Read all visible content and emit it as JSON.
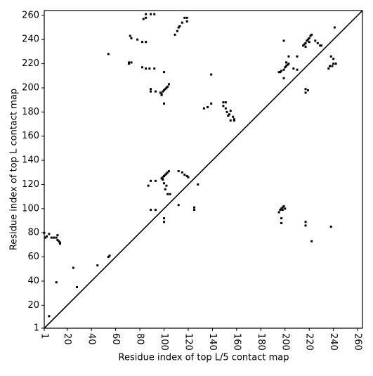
{
  "chart_data": {
    "type": "scatter",
    "x_label": "Residue index of top L/5 contact map",
    "y_label": "Residue index of top L contact map",
    "xlim": [
      1,
      264
    ],
    "ylim": [
      1,
      264
    ],
    "xticks": [
      1,
      20,
      40,
      60,
      80,
      100,
      120,
      140,
      160,
      180,
      200,
      220,
      240,
      260
    ],
    "yticks": [
      1,
      20,
      40,
      60,
      80,
      100,
      120,
      140,
      160,
      180,
      200,
      220,
      240,
      260
    ],
    "series": [
      {
        "color": "#000000",
        "x": [
          83,
          85,
          85,
          89,
          92,
          72,
          73,
          78,
          82,
          85,
          54,
          71,
          71,
          73,
          82,
          85,
          88,
          92,
          89,
          89,
          93,
          97,
          98,
          99,
          100,
          101,
          102,
          103,
          104,
          98,
          100,
          100,
          109,
          111,
          113,
          115,
          117,
          119,
          119,
          112,
          133,
          136,
          139,
          139,
          149,
          149,
          151,
          152,
          154,
          155,
          157,
          158,
          155,
          153,
          151,
          158,
          199,
          195,
          197,
          199,
          200,
          201,
          202,
          203,
          201,
          196,
          199,
          203,
          207,
          210,
          210,
          217,
          217,
          219,
          215,
          216,
          217,
          218,
          219,
          220,
          221,
          222,
          217,
          220,
          225,
          227,
          229,
          230,
          236,
          237,
          239,
          240,
          242,
          238,
          240,
          241
        ],
        "values": [
          257,
          258,
          261,
          261,
          261,
          243,
          241,
          240,
          238,
          238,
          228,
          221,
          220,
          221,
          217,
          216,
          216,
          216,
          199,
          197,
          197,
          196,
          195,
          197,
          198,
          199,
          200,
          201,
          203,
          194,
          187,
          213,
          244,
          247,
          251,
          254,
          258,
          258,
          255,
          250,
          183,
          184,
          187,
          211,
          185,
          188,
          183,
          180,
          178,
          181,
          176,
          174,
          173,
          177,
          188,
          173,
          239,
          213,
          214,
          215,
          217,
          218,
          219,
          220,
          221,
          213,
          208,
          226,
          216,
          215,
          226,
          199,
          196,
          198,
          235,
          236,
          237,
          239,
          240,
          241,
          243,
          244,
          234,
          238,
          239,
          237,
          235,
          235,
          216,
          218,
          218,
          220,
          220,
          226,
          224,
          250
        ]
      },
      {
        "color": "#000000",
        "x": [
          1,
          2,
          3,
          5,
          7,
          9,
          11,
          12,
          13,
          14,
          14,
          12,
          11,
          5,
          25,
          28,
          45,
          55,
          54,
          87,
          89,
          93,
          98,
          99,
          100,
          101,
          102,
          103,
          104,
          99,
          100,
          101,
          102,
          103,
          105,
          112,
          115,
          117,
          119,
          120,
          128,
          112,
          89,
          93,
          100,
          100,
          125,
          125,
          195,
          196,
          197,
          198,
          199,
          200,
          198,
          197,
          197,
          217,
          217,
          222,
          238
        ],
        "values": [
          80,
          76,
          77,
          79,
          76,
          76,
          76,
          74,
          73,
          72,
          71,
          78,
          39,
          11,
          51,
          35,
          53,
          61,
          60,
          119,
          123,
          123,
          125,
          126,
          127,
          128,
          129,
          130,
          131,
          124,
          121,
          116,
          119,
          112,
          112,
          131,
          130,
          128,
          127,
          126,
          120,
          103,
          99,
          99,
          92,
          89,
          101,
          99,
          97,
          99,
          100,
          101,
          102,
          100,
          99,
          88,
          92,
          89,
          86,
          73,
          85
        ]
      }
    ]
  }
}
